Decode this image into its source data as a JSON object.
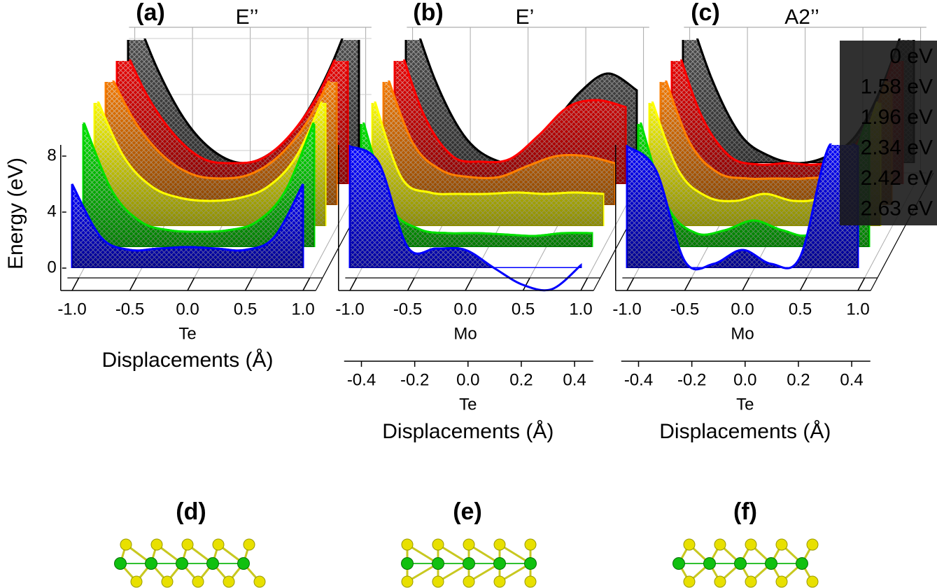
{
  "chart_data": [
    {
      "type": "waterfall",
      "panel_label": "(a)",
      "title": "E’’",
      "ylabel": "Energy (eV)",
      "x_atom": "Te",
      "xlabel": "Displacements (Å)",
      "x": [
        -1,
        -0.75,
        -0.5,
        -0.25,
        0,
        0.25,
        0.5,
        0.75,
        1
      ],
      "xlim": [
        -1.05,
        1.05
      ],
      "xticks": [
        {
          "value": -1,
          "label": "-1.0"
        },
        {
          "value": -0.5,
          "label": "-0.5"
        },
        {
          "value": 0,
          "label": "0.0"
        },
        {
          "value": 0.5,
          "label": "0.5"
        },
        {
          "value": 1,
          "label": "1.0"
        }
      ],
      "ylim": [
        -1.6,
        8.8
      ],
      "yticks": [
        0,
        4,
        8
      ],
      "series": [
        {
          "color": "#000000",
          "values": [
            12,
            6.8,
            3,
            0.8,
            0,
            0.8,
            3,
            6.8,
            12
          ]
        },
        {
          "color": "#ff0000",
          "values": [
            11,
            6.5,
            3.5,
            1.8,
            1.5,
            1.8,
            3.5,
            6.5,
            11
          ]
        },
        {
          "color": "#ff7f00",
          "values": [
            10,
            6,
            3.5,
            2.2,
            1.9,
            2.2,
            3.5,
            6,
            10
          ]
        },
        {
          "color": "#ffff00",
          "values": [
            9.5,
            5,
            2.8,
            2,
            1.8,
            2,
            2.8,
            5,
            9.5
          ]
        },
        {
          "color": "#00e000",
          "values": [
            9,
            4,
            1.8,
            1.2,
            1.1,
            1.2,
            1.8,
            4,
            9
          ]
        },
        {
          "color": "#0000ff",
          "values": [
            6,
            2.2,
            1.3,
            1.4,
            1.5,
            1.4,
            1.3,
            2.2,
            6
          ]
        }
      ]
    },
    {
      "type": "waterfall",
      "panel_label": "(b)",
      "title": "E’",
      "x_atom": "Mo",
      "x2_atom": "Te",
      "xlabel": "Displacements (Å)",
      "x": [
        -1,
        -0.75,
        -0.5,
        -0.25,
        0,
        0.25,
        0.5,
        0.75,
        1
      ],
      "xlim": [
        -1.05,
        1.05
      ],
      "xticks": [
        {
          "value": -1,
          "label": "-1.0"
        },
        {
          "value": -0.5,
          "label": "-0.5"
        },
        {
          "value": 0,
          "label": "0.0"
        },
        {
          "value": 0.5,
          "label": "0.5"
        },
        {
          "value": 1,
          "label": "1.0"
        }
      ],
      "x2lim": [
        -0.465,
        0.47
      ],
      "x2ticks": [
        -0.4,
        -0.2,
        {
          "value": 0,
          "label": "0.0"
        },
        0.2,
        0.4
      ],
      "ylim": [
        -1.6,
        8.8
      ],
      "series": [
        {
          "color": "#000000",
          "values": [
            12,
            6,
            2,
            0.3,
            0.2,
            2.5,
            5,
            6.4,
            5.2
          ]
        },
        {
          "color": "#ff0000",
          "values": [
            11,
            5,
            2,
            1.6,
            1.8,
            3.5,
            5.5,
            6,
            5.5
          ]
        },
        {
          "color": "#ff7f00",
          "values": [
            10,
            4.5,
            2.5,
            2,
            2,
            2.8,
            3.5,
            3.5,
            3
          ]
        },
        {
          "color": "#ffff00",
          "values": [
            9.5,
            3.5,
            2.4,
            2.3,
            2.3,
            2.4,
            2.3,
            2.4,
            2.3
          ]
        },
        {
          "color": "#00e000",
          "values": [
            9.5,
            3,
            1.3,
            1,
            1,
            0.9,
            0.8,
            1,
            1
          ]
        },
        {
          "color": "#0000ff",
          "values": [
            8.7,
            7.5,
            1.5,
            1.4,
            1.3,
            0,
            -1.2,
            -1.5,
            0.2
          ]
        }
      ]
    },
    {
      "type": "waterfall",
      "panel_label": "(c)",
      "title": "A2’’",
      "x_atom": "Mo",
      "x2_atom": "Te",
      "xlabel": "Displacements (Å)",
      "x": [
        -1,
        -0.75,
        -0.5,
        -0.25,
        0,
        0.25,
        0.5,
        0.75,
        1
      ],
      "xlim": [
        -1.05,
        1.05
      ],
      "xticks": [
        {
          "value": -1,
          "label": "-1.0"
        },
        {
          "value": -0.5,
          "label": "-0.5"
        },
        {
          "value": 0,
          "label": "0.0"
        },
        {
          "value": 0.5,
          "label": "0.5"
        },
        {
          "value": 1,
          "label": "1.0"
        }
      ],
      "x2lim": [
        -0.465,
        0.47
      ],
      "x2ticks": [
        -0.4,
        -0.2,
        {
          "value": 0,
          "label": "0.0"
        },
        0.2,
        0.4
      ],
      "ylim": [
        -1.6,
        8.8
      ],
      "legend": "upper right",
      "series": [
        {
          "name": "0 eV",
          "color": "#000000",
          "label_color": "#ffffff",
          "values": [
            12,
            6,
            2,
            0.5,
            0,
            0.5,
            2,
            6,
            12
          ]
        },
        {
          "name": "1.58 eV",
          "color": "#ff0000",
          "label_color": "#ff0000",
          "values": [
            11,
            5,
            2,
            1.4,
            1.5,
            1.4,
            2,
            5,
            11
          ]
        },
        {
          "name": "1.96 eV",
          "color": "#ff7f00",
          "label_color": "#ff7f00",
          "values": [
            10,
            4.5,
            2.3,
            1.9,
            1.9,
            1.9,
            2.3,
            4.5,
            10
          ]
        },
        {
          "name": "2.34 eV",
          "color": "#ffff00",
          "label_color": "#ffff00",
          "values": [
            9.5,
            4,
            2.1,
            1.8,
            2.3,
            1.8,
            2.1,
            4,
            9.5
          ]
        },
        {
          "name": "2.42 eV",
          "color": "#00e000",
          "label_color": "#00e000",
          "values": [
            9.5,
            3,
            1,
            1.2,
            1.9,
            1.2,
            1,
            4,
            9.5
          ]
        },
        {
          "name": "2.63 eV",
          "color": "#0000ff",
          "label_color": "#1e90ff",
          "values": [
            8.7,
            7,
            0.5,
            0.3,
            1.3,
            0.3,
            0.8,
            8.7,
            8.7
          ]
        }
      ]
    }
  ],
  "structure_labels": [
    "(d)",
    "(e)",
    "(f)"
  ]
}
